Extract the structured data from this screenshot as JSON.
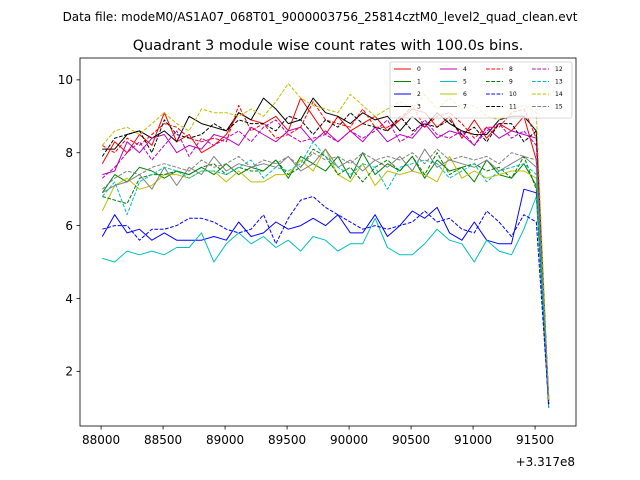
{
  "figure": {
    "suptitle": "Data file: modeM0/AS1A07_068T01_9000003756_25814cztM0_level2_quad_clean.evt",
    "title": "Quadrant 3 module wise count rates with 100.0s bins."
  },
  "chart_data": {
    "type": "line",
    "title": "Quadrant 3 module wise count rates with 100.0s bins.",
    "xlabel": "",
    "ylabel": "",
    "x_offset_label": "+3.317e8",
    "x_offset": 331700000,
    "xlim": [
      87830,
      91830
    ],
    "ylim": [
      0.5,
      10.6
    ],
    "x_ticks": [
      88000,
      88500,
      89000,
      89500,
      90000,
      90500,
      91000,
      91500
    ],
    "y_ticks": [
      2,
      4,
      6,
      8,
      10
    ],
    "grid": false,
    "legend_position": "top-right",
    "legend_columns": 4,
    "x": [
      88010,
      88110,
      88210,
      88310,
      88410,
      88510,
      88610,
      88710,
      88810,
      88910,
      89010,
      89110,
      89210,
      89310,
      89410,
      89510,
      89610,
      89710,
      89810,
      89910,
      90010,
      90110,
      90210,
      90310,
      90410,
      90510,
      90610,
      90710,
      90810,
      90910,
      91010,
      91110,
      91210,
      91310,
      91410,
      91510,
      91610
    ],
    "series": [
      {
        "name": "0",
        "color": "#ff0000",
        "dash": false,
        "values": [
          7.7,
          8.3,
          8.0,
          8.5,
          8.2,
          9.1,
          8.3,
          8.5,
          8.0,
          8.2,
          8.5,
          9.1,
          8.9,
          8.8,
          9.0,
          8.6,
          9.5,
          9.0,
          8.5,
          9.0,
          8.6,
          8.8,
          9.0,
          8.6,
          8.9,
          9.2,
          9.1,
          8.7,
          9.0,
          8.4,
          8.9,
          8.4,
          8.8,
          8.6,
          9.0,
          7.8,
          1.1
        ]
      },
      {
        "name": "1",
        "color": "#008000",
        "dash": false,
        "values": [
          6.9,
          7.4,
          7.2,
          7.6,
          7.5,
          7.3,
          7.5,
          7.4,
          7.6,
          7.4,
          7.7,
          7.4,
          7.6,
          7.5,
          7.8,
          7.3,
          7.9,
          7.7,
          7.5,
          7.9,
          7.3,
          8.0,
          7.4,
          7.7,
          7.5,
          7.9,
          7.3,
          7.8,
          7.5,
          7.6,
          7.2,
          7.8,
          7.4,
          7.3,
          7.7,
          7.1,
          1.3
        ]
      },
      {
        "name": "2",
        "color": "#0000ff",
        "dash": false,
        "values": [
          5.7,
          6.3,
          5.8,
          5.9,
          5.6,
          5.8,
          5.6,
          5.6,
          5.6,
          5.7,
          5.6,
          6.1,
          5.7,
          5.8,
          6.1,
          5.9,
          6.0,
          6.2,
          6.0,
          6.3,
          5.8,
          5.8,
          6.3,
          5.7,
          6.0,
          6.4,
          6.2,
          6.5,
          5.8,
          5.6,
          6.1,
          5.6,
          5.5,
          5.5,
          7.0,
          6.9,
          1.0
        ]
      },
      {
        "name": "3",
        "color": "#000000",
        "dash": false,
        "values": [
          8.1,
          8.1,
          8.5,
          8.6,
          8.4,
          8.6,
          8.3,
          9.0,
          8.8,
          8.7,
          8.6,
          9.1,
          8.9,
          9.5,
          9.2,
          8.8,
          8.9,
          9.5,
          9.1,
          9.0,
          8.8,
          9.1,
          8.9,
          9.0,
          8.6,
          9.0,
          8.7,
          9.1,
          8.8,
          8.6,
          8.5,
          8.5,
          8.9,
          9.0,
          9.0,
          8.6,
          1.2
        ]
      },
      {
        "name": "4",
        "color": "#bf00bf",
        "dash": false,
        "values": [
          7.4,
          7.5,
          8.3,
          8.0,
          8.4,
          8.5,
          8.0,
          8.2,
          8.1,
          8.5,
          8.4,
          8.2,
          8.7,
          8.5,
          8.3,
          8.6,
          8.7,
          8.3,
          8.6,
          8.3,
          8.6,
          8.3,
          8.7,
          8.3,
          8.5,
          8.4,
          8.8,
          8.4,
          8.6,
          8.5,
          8.2,
          8.7,
          8.4,
          8.6,
          8.5,
          8.4,
          1.2
        ]
      },
      {
        "name": "5",
        "color": "#00bfbf",
        "dash": false,
        "values": [
          5.1,
          5.0,
          5.3,
          5.2,
          5.3,
          5.2,
          5.4,
          5.4,
          5.8,
          5.0,
          5.5,
          5.8,
          5.5,
          5.7,
          5.4,
          5.6,
          5.3,
          5.7,
          5.6,
          5.3,
          5.5,
          5.5,
          6.2,
          5.4,
          5.2,
          5.2,
          5.5,
          5.9,
          5.6,
          5.5,
          5.0,
          5.6,
          5.3,
          5.2,
          5.9,
          6.8,
          1.0
        ]
      },
      {
        "name": "6",
        "color": "#bfbf00",
        "dash": false,
        "values": [
          6.4,
          7.1,
          7.3,
          7.0,
          7.1,
          7.4,
          7.4,
          7.3,
          7.5,
          7.5,
          7.2,
          7.5,
          7.2,
          7.2,
          7.4,
          7.4,
          7.8,
          7.5,
          8.1,
          7.4,
          7.2,
          7.7,
          7.1,
          7.5,
          7.4,
          7.5,
          7.4,
          7.2,
          7.9,
          7.3,
          7.5,
          7.3,
          7.4,
          7.5,
          7.5,
          7.3,
          1.3
        ]
      },
      {
        "name": "7",
        "color": "#808080",
        "dash": false,
        "values": [
          6.9,
          7.1,
          7.2,
          7.4,
          7.0,
          7.6,
          7.1,
          7.6,
          7.4,
          7.9,
          7.5,
          7.7,
          7.6,
          7.7,
          7.6,
          7.9,
          7.5,
          7.7,
          8.1,
          7.6,
          7.8,
          7.5,
          7.8,
          7.6,
          7.9,
          7.5,
          8.1,
          7.6,
          7.8,
          7.7,
          7.6,
          7.8,
          7.5,
          7.7,
          7.9,
          7.6,
          1.2
        ]
      },
      {
        "name": "8",
        "color": "#ff0000",
        "dash": true,
        "values": [
          8.2,
          8.0,
          8.4,
          8.2,
          8.5,
          8.8,
          8.7,
          8.4,
          8.3,
          8.4,
          8.3,
          9.3,
          8.6,
          8.8,
          8.4,
          8.5,
          8.7,
          9.4,
          8.9,
          8.8,
          8.7,
          9.2,
          8.7,
          8.7,
          8.9,
          9.3,
          8.7,
          9.0,
          9.1,
          8.8,
          8.4,
          8.7,
          8.7,
          9.1,
          9.2,
          8.4,
          1.1
        ]
      },
      {
        "name": "9",
        "color": "#008000",
        "dash": true,
        "values": [
          6.8,
          6.7,
          6.6,
          7.3,
          7.4,
          7.4,
          7.5,
          7.4,
          7.6,
          7.7,
          7.4,
          7.6,
          7.5,
          7.5,
          7.8,
          7.4,
          7.6,
          8.1,
          7.9,
          7.4,
          7.6,
          7.2,
          7.6,
          7.8,
          7.5,
          7.9,
          7.4,
          8.0,
          7.4,
          7.6,
          7.7,
          7.5,
          7.6,
          7.3,
          7.9,
          7.0,
          1.2
        ]
      },
      {
        "name": "10",
        "color": "#0000ff",
        "dash": true,
        "values": [
          5.9,
          6.0,
          6.0,
          5.6,
          5.9,
          5.9,
          6.0,
          6.2,
          6.2,
          6.1,
          5.9,
          5.8,
          5.9,
          6.3,
          5.5,
          6.2,
          6.7,
          6.8,
          6.5,
          6.3,
          6.1,
          5.9,
          6.0,
          5.9,
          6.0,
          6.1,
          6.4,
          6.1,
          6.2,
          5.9,
          5.8,
          6.4,
          6.1,
          5.7,
          6.3,
          6.1,
          1.1
        ]
      },
      {
        "name": "11",
        "color": "#000000",
        "dash": true,
        "values": [
          7.9,
          8.4,
          8.5,
          8.6,
          8.0,
          8.9,
          8.5,
          8.4,
          8.5,
          8.8,
          8.6,
          8.9,
          8.8,
          8.8,
          8.6,
          9.0,
          8.9,
          8.5,
          8.9,
          8.7,
          9.1,
          8.8,
          8.7,
          8.6,
          9.0,
          8.6,
          8.8,
          8.7,
          8.9,
          8.5,
          8.7,
          8.3,
          8.8,
          8.8,
          8.3,
          8.6,
          1.1
        ]
      },
      {
        "name": "12",
        "color": "#bf00bf",
        "dash": true,
        "values": [
          7.3,
          7.6,
          8.0,
          8.3,
          7.8,
          8.2,
          8.6,
          7.9,
          8.4,
          8.2,
          8.4,
          8.6,
          8.3,
          8.7,
          8.9,
          8.5,
          8.3,
          8.4,
          8.5,
          8.3,
          8.6,
          8.4,
          8.6,
          8.9,
          8.3,
          8.5,
          8.9,
          8.5,
          8.4,
          8.6,
          8.2,
          8.6,
          8.8,
          8.4,
          8.6,
          8.2,
          1.2
        ]
      },
      {
        "name": "13",
        "color": "#00bfbf",
        "dash": true,
        "values": [
          6.8,
          7.2,
          6.3,
          7.2,
          7.4,
          7.6,
          7.5,
          7.3,
          7.5,
          7.5,
          7.4,
          7.6,
          7.8,
          7.3,
          7.6,
          7.5,
          7.7,
          8.3,
          7.9,
          7.6,
          7.4,
          7.7,
          7.6,
          7.0,
          7.6,
          7.7,
          7.8,
          7.7,
          7.3,
          7.5,
          7.7,
          7.2,
          7.5,
          7.6,
          7.7,
          7.4,
          1.3
        ]
      },
      {
        "name": "14",
        "color": "#bfbf00",
        "dash": true,
        "values": [
          8.2,
          8.6,
          8.7,
          8.5,
          8.8,
          9.1,
          8.8,
          8.6,
          9.2,
          9.1,
          9.1,
          9.0,
          9.2,
          9.0,
          9.4,
          9.9,
          9.5,
          9.3,
          9.2,
          9.1,
          9.6,
          9.3,
          9.0,
          9.2,
          9.4,
          9.2,
          9.6,
          9.2,
          9.5,
          9.2,
          9.3,
          9.0,
          8.9,
          9.2,
          9.3,
          9.1,
          1.2
        ]
      },
      {
        "name": "15",
        "color": "#808080",
        "dash": true,
        "values": [
          7.0,
          7.3,
          7.5,
          7.4,
          7.6,
          7.7,
          7.6,
          7.5,
          7.8,
          7.6,
          7.7,
          7.9,
          7.6,
          7.8,
          7.7,
          7.9,
          7.6,
          8.0,
          7.8,
          7.9,
          7.7,
          8.0,
          7.8,
          7.9,
          7.8,
          8.0,
          7.7,
          8.1,
          7.8,
          7.9,
          7.8,
          7.9,
          7.7,
          8.0,
          7.9,
          7.8,
          1.3
        ]
      }
    ]
  }
}
